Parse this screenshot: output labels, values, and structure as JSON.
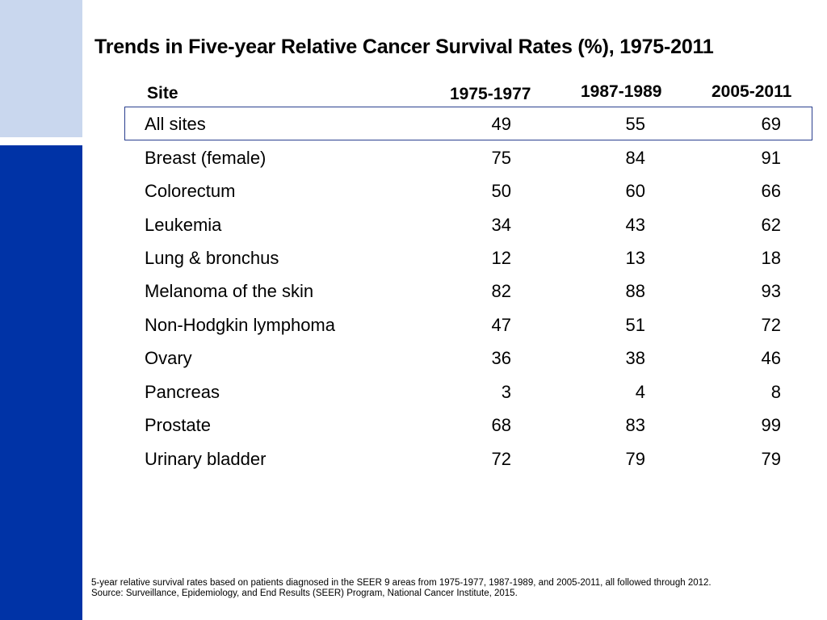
{
  "title": "Trends in Five-year Relative Cancer Survival Rates (%), 1975-2011",
  "table": {
    "headers": [
      "Site",
      "1975-1977",
      "1987-1989",
      "2005-2011"
    ],
    "rows": [
      {
        "site": "All sites",
        "v1975": "49",
        "v1987": "55",
        "v2005": "69"
      },
      {
        "site": "Breast (female)",
        "v1975": "75",
        "v1987": "84",
        "v2005": "91"
      },
      {
        "site": "Colorectum",
        "v1975": "50",
        "v1987": "60",
        "v2005": "66"
      },
      {
        "site": "Leukemia",
        "v1975": "34",
        "v1987": "43",
        "v2005": "62"
      },
      {
        "site": "Lung & bronchus",
        "v1975": "12",
        "v1987": "13",
        "v2005": "18"
      },
      {
        "site": "Melanoma of the skin",
        "v1975": "82",
        "v1987": "88",
        "v2005": "93"
      },
      {
        "site": "Non-Hodgkin lymphoma",
        "v1975": "47",
        "v1987": "51",
        "v2005": "72"
      },
      {
        "site": "Ovary",
        "v1975": "36",
        "v1987": "38",
        "v2005": "46"
      },
      {
        "site": "Pancreas",
        "v1975": "3",
        "v1987": "4",
        "v2005": "8"
      },
      {
        "site": "Prostate",
        "v1975": "68",
        "v1987": "83",
        "v2005": "99"
      },
      {
        "site": "Urinary bladder",
        "v1975": "72",
        "v1987": "79",
        "v2005": "79"
      }
    ]
  },
  "footnote": {
    "line1": "5-year relative survival rates based on patients diagnosed in the SEER 9 areas from 1975-1977, 1987-1989, and 2005-2011, all followed through 2012.",
    "line2": "Source: Surveillance, Epidemiology, and End Results (SEER) Program, National Cancer Institute, 2015."
  },
  "colors": {
    "sidebar_dark": "#0033a6",
    "sidebar_light": "#c9d7ee",
    "highlight_border": "#2a3f8f"
  }
}
